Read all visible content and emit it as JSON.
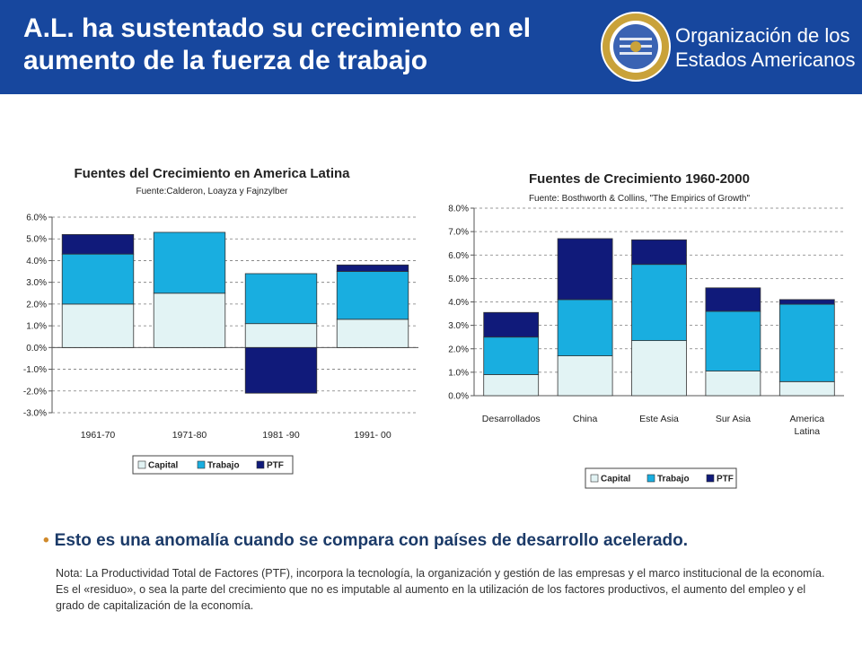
{
  "header": {
    "title_line1": "A.L. ha sustentado su crecimiento en el",
    "title_line2": "aumento de la fuerza de trabajo",
    "org_line1": "Organización de los",
    "org_line2": "Estados Americanos",
    "bg_color": "#17479e"
  },
  "colors": {
    "capital": "#e2f3f4",
    "trabajo": "#19aee0",
    "ptf": "#101a7a"
  },
  "chart_data": [
    {
      "type": "bar",
      "stacked": true,
      "title": "Fuentes del Crecimiento en America Latina",
      "subtitle": "Fuente:Calderon, Loayza y Fajnzylber",
      "categories": [
        "1961-70",
        "1971-80",
        "1981 -90",
        "1991- 00"
      ],
      "category_lines": [
        [
          "1961-70"
        ],
        [
          "1971-80"
        ],
        [
          "1981 -90"
        ],
        [
          "1991- 00"
        ]
      ],
      "series": [
        {
          "name": "Capital",
          "values": [
            2.0,
            2.5,
            1.1,
            1.3
          ]
        },
        {
          "name": "Trabajo",
          "values": [
            2.3,
            2.8,
            2.3,
            2.2
          ]
        },
        {
          "name": "PTF",
          "values": [
            0.9,
            0.0,
            -2.1,
            0.3
          ]
        }
      ],
      "ylim": [
        -3.0,
        6.0
      ],
      "ytick_labels": [
        "6.0%",
        "5.0%",
        "4.0%",
        "3.0%",
        "2.0%",
        "1.0%",
        "0.0%",
        "-1.0%",
        "-2.0%",
        "-3.0%"
      ],
      "grid": true,
      "legend": [
        "Capital",
        "Trabajo",
        "PTF"
      ],
      "legend_position": "bottom"
    },
    {
      "type": "bar",
      "stacked": true,
      "title": "Fuentes de Crecimiento 1960-2000",
      "subtitle": "Fuente: Bosthworth & Collins, \"The Empirics of Growth\"",
      "categories": [
        "Desarrollados",
        "China",
        "Este Asia",
        "Sur Asia",
        "America Latina"
      ],
      "category_lines": [
        [
          "Desarrollados"
        ],
        [
          "China"
        ],
        [
          "Este Asia"
        ],
        [
          "Sur Asia"
        ],
        [
          "America",
          "Latina"
        ]
      ],
      "series": [
        {
          "name": "Capital",
          "values": [
            0.9,
            1.7,
            2.35,
            1.05,
            0.6
          ]
        },
        {
          "name": "Trabajo",
          "values": [
            1.6,
            2.4,
            3.25,
            2.55,
            3.3
          ]
        },
        {
          "name": "PTF",
          "values": [
            1.05,
            2.6,
            1.05,
            1.0,
            0.2
          ]
        }
      ],
      "ylim": [
        0.0,
        8.0
      ],
      "ytick_labels": [
        "8.0%",
        "7.0%",
        "6.0%",
        "5.0%",
        "4.0%",
        "3.0%",
        "2.0%",
        "1.0%",
        "0.0%"
      ],
      "grid": true,
      "legend": [
        "Capital",
        "Trabajo",
        "PTF"
      ],
      "legend_position": "bottom"
    }
  ],
  "bullet_text": "Esto es una anomalía cuando se compara con países de desarrollo acelerado.",
  "note_text": "Nota: La Productividad Total de Factores (PTF), incorpora la tecnología, la organización y gestión de las empresas y el marco institucional de la economía. Es el «residuo», o sea la parte del crecimiento que no es imputable al aumento en la utilización de los factores productivos, el aumento del empleo y el grado de capitalización de la economía."
}
